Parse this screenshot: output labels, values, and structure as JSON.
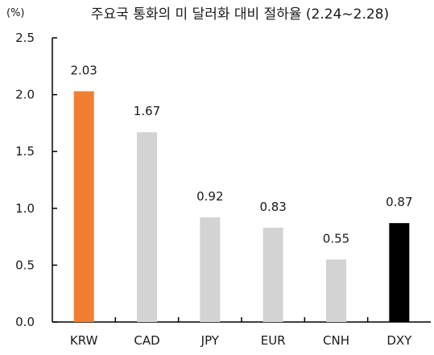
{
  "chart_data": {
    "type": "bar",
    "title": "주요국 통화의 미 달러화 대비 절하율 (2.24~2.28)",
    "unit": "(%)",
    "categories": [
      "KRW",
      "CAD",
      "JPY",
      "EUR",
      "CNH",
      "DXY"
    ],
    "values": [
      2.03,
      1.67,
      0.92,
      0.83,
      0.55,
      0.87
    ],
    "value_labels": [
      "2.03",
      "1.67",
      "0.92",
      "0.83",
      "0.55",
      "0.87"
    ],
    "bar_colors": [
      "#f08030",
      "#d3d3d3",
      "#d3d3d3",
      "#d3d3d3",
      "#d3d3d3",
      "#000000"
    ],
    "ylim": [
      0,
      2.5
    ],
    "yticks": [
      0.0,
      0.5,
      1.0,
      1.5,
      2.0,
      2.5
    ],
    "ytick_labels": [
      "0.0",
      "0.5",
      "1.0",
      "1.5",
      "2.0",
      "2.5"
    ],
    "xlabel": "",
    "ylabel": "",
    "grid": false,
    "legend": "none"
  }
}
